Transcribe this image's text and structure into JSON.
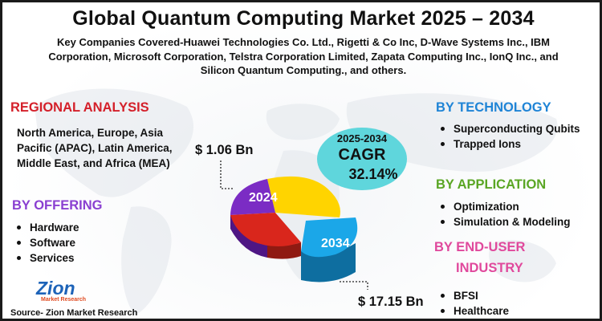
{
  "title": "Global Quantum Computing Market 2025 – 2034",
  "companies": "Key Companies Covered-Huawei Technologies Co. Ltd., Rigetti & Co Inc, D-Wave Systems Inc., IBM Corporation, Microsoft Corporation, Telstra Corporation Limited, Zapata Computing Inc., IonQ Inc., and Silicon Quantum Computing., and others.",
  "regional": {
    "heading": "REGIONAL ANALYSIS",
    "text": "North America, Europe, Asia Pacific (APAC), Latin America, Middle East, and Africa (MEA)"
  },
  "offering": {
    "heading": "BY OFFERING",
    "items": [
      "Hardware",
      "Software",
      "Services"
    ]
  },
  "technology": {
    "heading": "BY TECHNOLOGY",
    "items": [
      "Superconducting Qubits",
      "Trapped Ions"
    ]
  },
  "application": {
    "heading": "BY APPLICATION",
    "items": [
      "Optimization",
      "Simulation & Modeling"
    ]
  },
  "enduser": {
    "heading_line1": "BY END-USER",
    "heading_line2": "INDUSTRY",
    "items": [
      "BFSI",
      "Healthcare"
    ]
  },
  "cagr": {
    "period": "2025-2034",
    "label": "CAGR",
    "value": "32.14%"
  },
  "chart_data": {
    "type": "pie",
    "labels": [
      "2024",
      "2034"
    ],
    "values": [
      1.06,
      17.15
    ],
    "value_labels": [
      "$ 1.06 Bn",
      "$ 17.15 Bn"
    ]
  },
  "source": "Source- Zion Market Research",
  "logo": {
    "word": "Zion",
    "sub": "Market Research"
  },
  "colors": {
    "slice_yellow": "#ffd400",
    "slice_purple": "#7b2cc4",
    "slice_red": "#d9261c",
    "slice_blue": "#1ba7e8",
    "cagr_bubble": "#5fd6dc"
  }
}
